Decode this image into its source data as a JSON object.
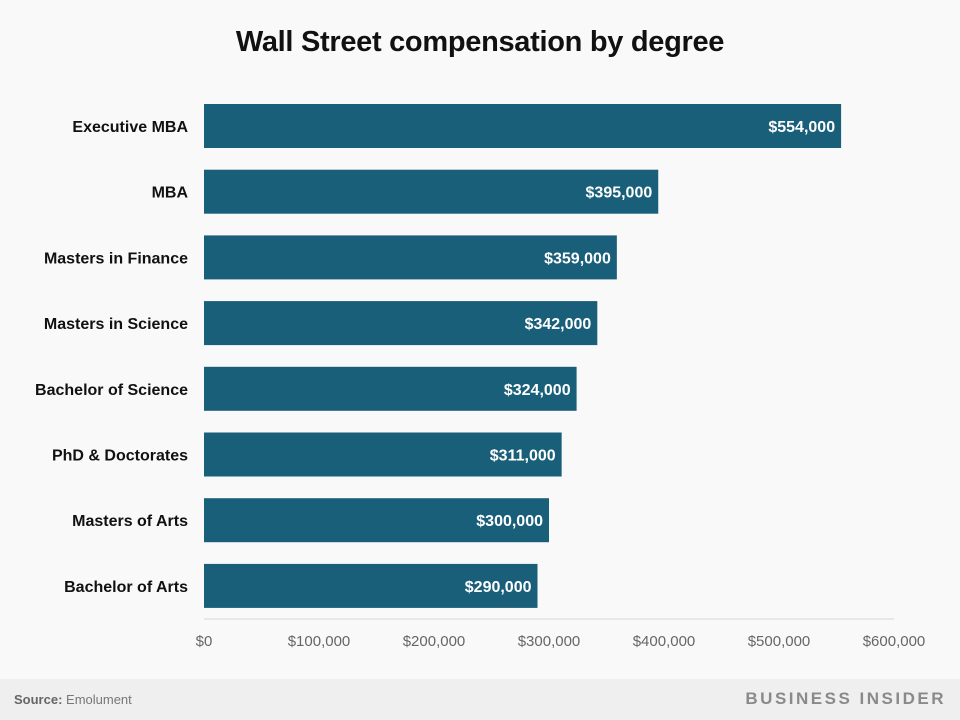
{
  "chart_data": {
    "type": "bar",
    "orientation": "horizontal",
    "title": "Wall Street compensation by degree",
    "categories": [
      "Executive MBA",
      "MBA",
      "Masters in Finance",
      "Masters in Science",
      "Bachelor of Science",
      "PhD & Doctorates",
      "Masters of Arts",
      "Bachelor of Arts"
    ],
    "values": [
      554000,
      395000,
      359000,
      342000,
      324000,
      311000,
      300000,
      290000
    ],
    "data_labels": [
      "$554,000",
      "$395,000",
      "$359,000",
      "$342,000",
      "$324,000",
      "$311,000",
      "$300,000",
      "$290,000"
    ],
    "xlim": [
      0,
      600000
    ],
    "x_ticks": [
      0,
      100000,
      200000,
      300000,
      400000,
      500000,
      600000
    ],
    "x_tick_labels": [
      "$0",
      "$100,000",
      "$200,000",
      "$300,000",
      "$400,000",
      "$500,000",
      "$600,000"
    ],
    "xlabel": "",
    "ylabel": "",
    "grid": false,
    "bar_color": "#1a5f7a"
  },
  "footer": {
    "source_label": "Source:",
    "source_value": " Emolument",
    "brand": "BUSINESS INSIDER"
  }
}
